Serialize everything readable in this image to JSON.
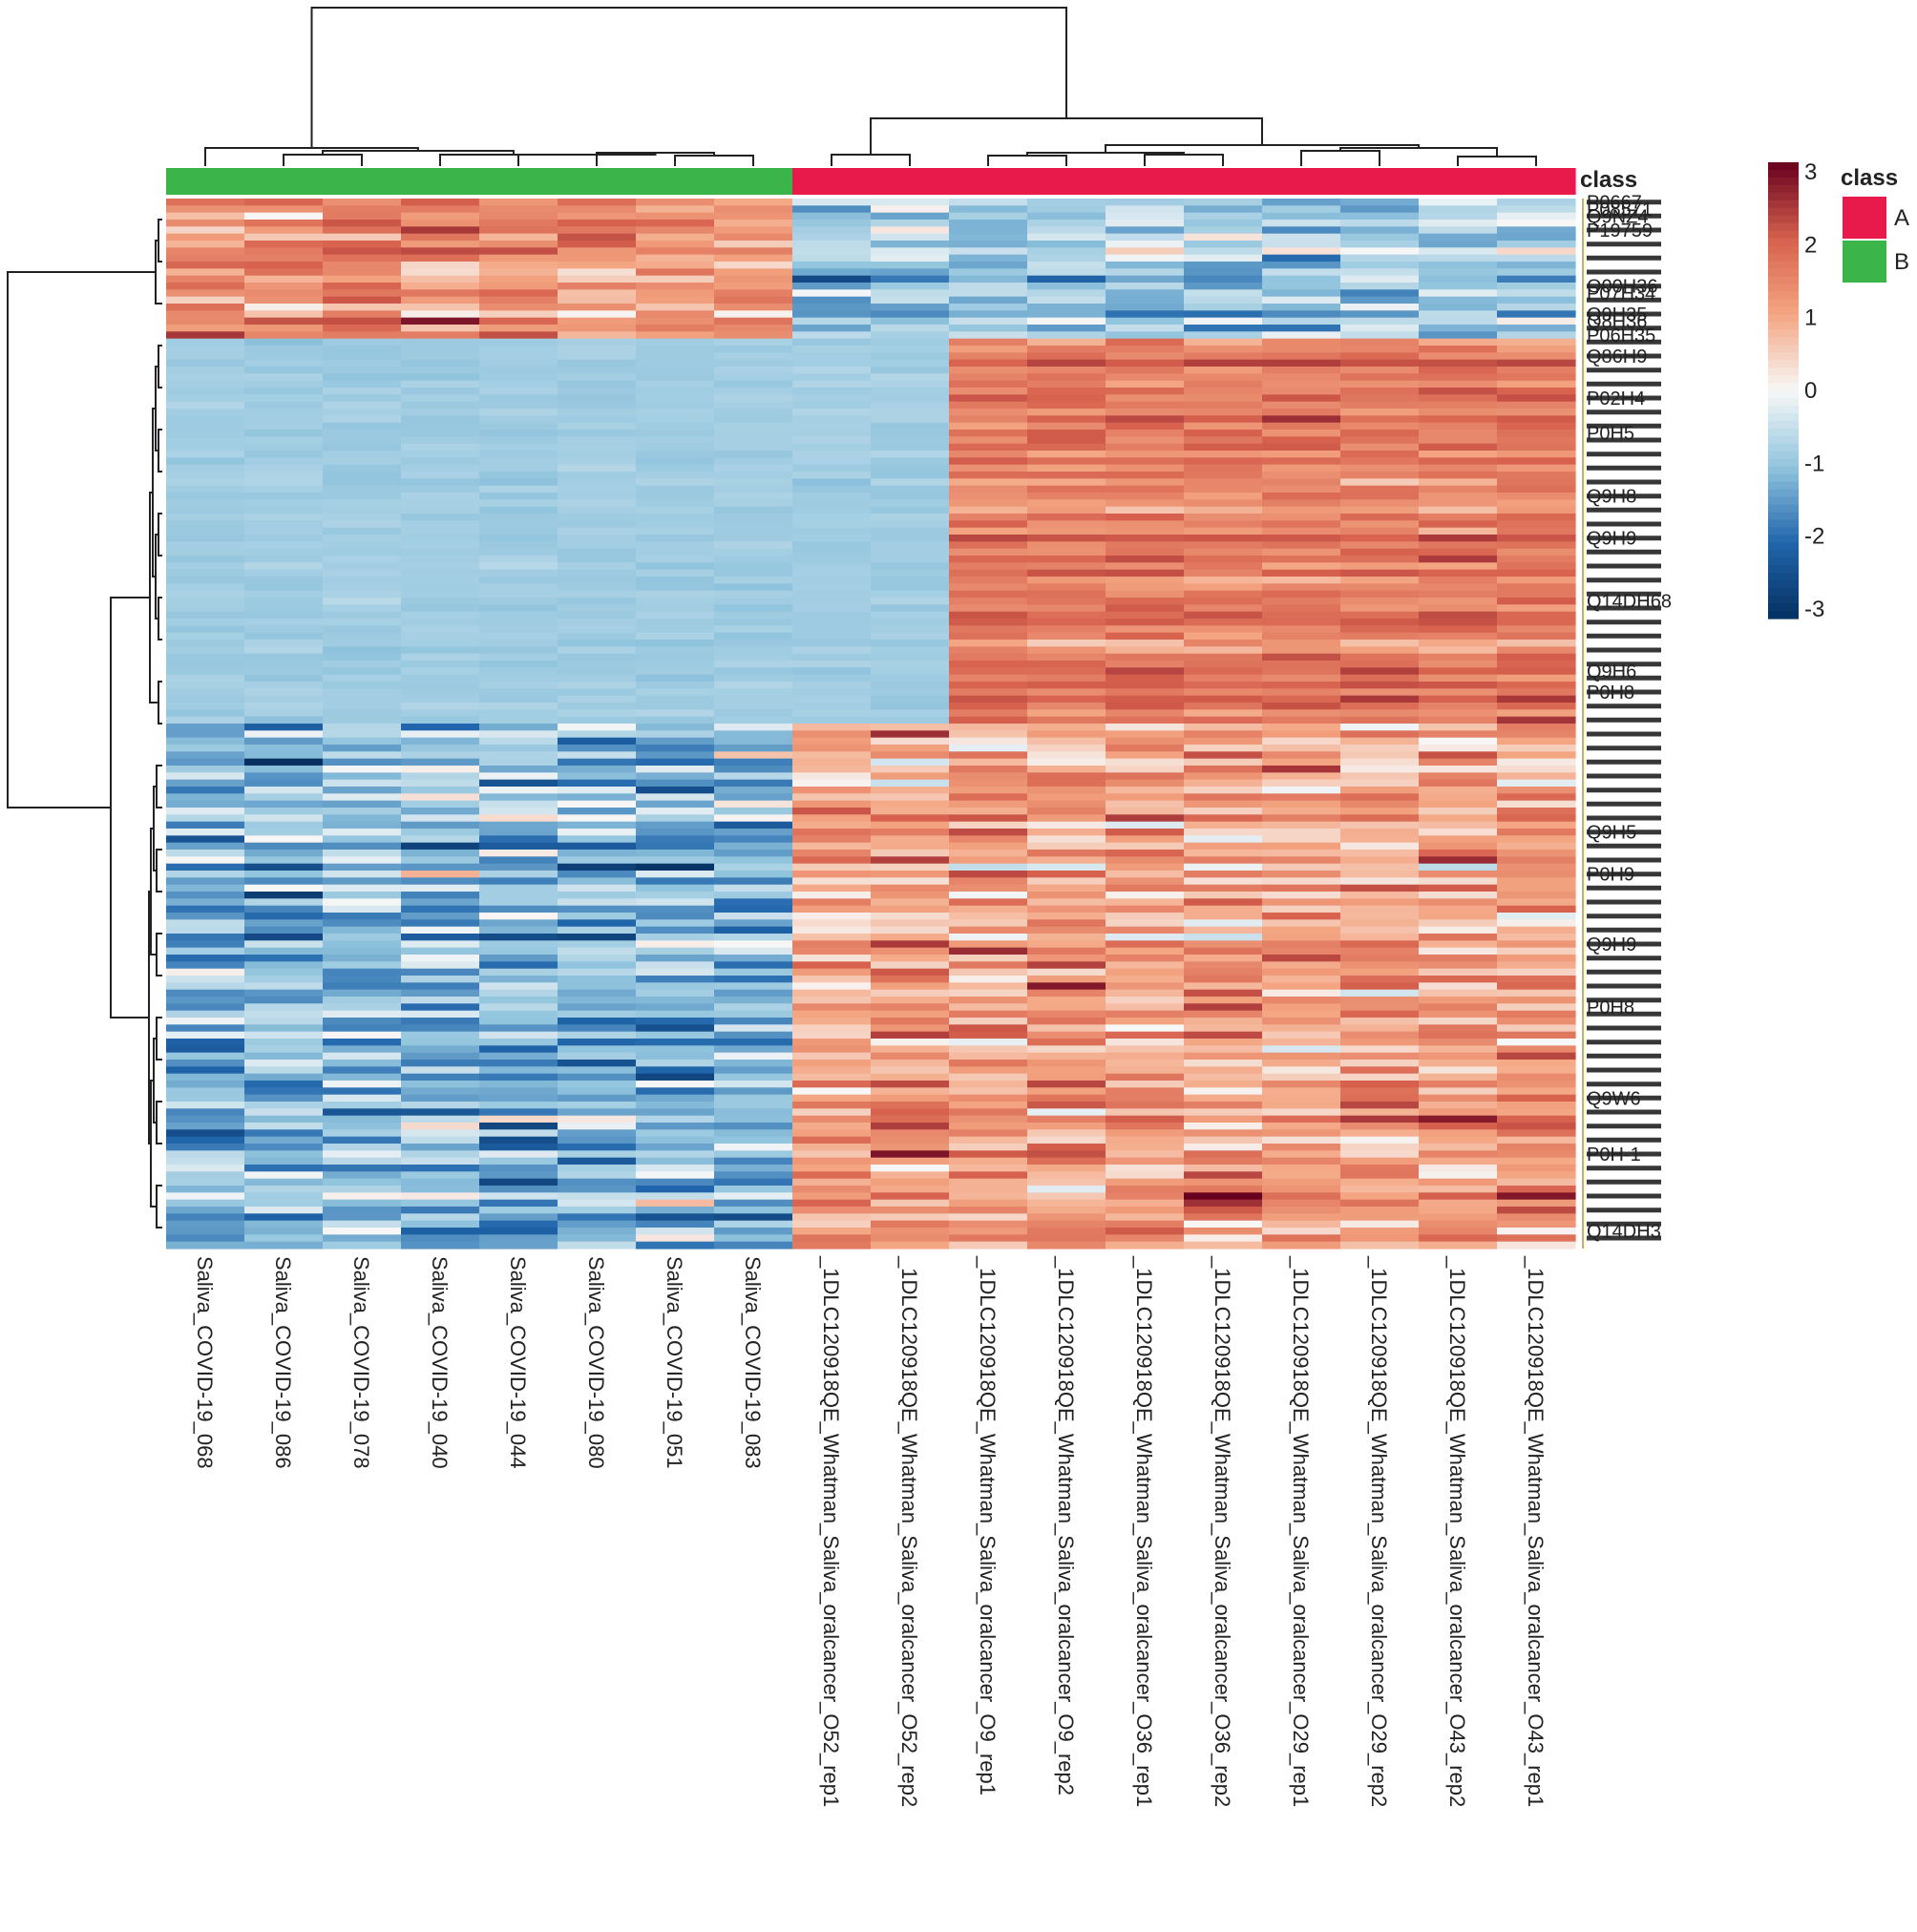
{
  "chart_data": {
    "type": "heatmap",
    "title": "",
    "columns": [
      {
        "label": "Saliva_COVID-19_068",
        "class": "B"
      },
      {
        "label": "Saliva_COVID-19_086",
        "class": "B"
      },
      {
        "label": "Saliva_COVID-19_078",
        "class": "B"
      },
      {
        "label": "Saliva_COVID-19_040",
        "class": "B"
      },
      {
        "label": "Saliva_COVID-19_044",
        "class": "B"
      },
      {
        "label": "Saliva_COVID-19_080",
        "class": "B"
      },
      {
        "label": "Saliva_COVID-19_051",
        "class": "B"
      },
      {
        "label": "Saliva_COVID-19_083",
        "class": "B"
      },
      {
        "label": "_1DLC120918QE_Whatman_Saliva_oralcancer_O52_rep1",
        "class": "A"
      },
      {
        "label": "_1DLC120918QE_Whatman_Saliva_oralcancer_O52_rep2",
        "class": "A"
      },
      {
        "label": "_1DLC120918QE_Whatman_Saliva_oralcancer_O9_rep1",
        "class": "A"
      },
      {
        "label": "_1DLC120918QE_Whatman_Saliva_oralcancer_O9_rep2",
        "class": "A"
      },
      {
        "label": "_1DLC120918QE_Whatman_Saliva_oralcancer_O36_rep1",
        "class": "A"
      },
      {
        "label": "_1DLC120918QE_Whatman_Saliva_oralcancer_O36_rep2",
        "class": "A"
      },
      {
        "label": "_1DLC120918QE_Whatman_Saliva_oralcancer_O29_rep1",
        "class": "A"
      },
      {
        "label": "_1DLC120918QE_Whatman_Saliva_oralcancer_O29_rep2",
        "class": "A"
      },
      {
        "label": "_1DLC120918QE_Whatman_Saliva_oralcancer_O43_rep2",
        "class": "A"
      },
      {
        "label": "_1DLC120918QE_Whatman_Saliva_oralcancer_O43_rep1",
        "class": "A"
      }
    ],
    "row_blocks": [
      {
        "name": "block1",
        "rows": 20,
        "group_mean": {
          "B": 1.2,
          "A": -0.9
        },
        "spread": 0.45
      },
      {
        "name": "block2",
        "rows": 55,
        "group_mean": {
          "B": -0.8,
          "A52": -0.8,
          "A": 1.5
        },
        "spread": 0.25
      },
      {
        "name": "block3",
        "rows": 40,
        "group_mean": {
          "B": -1.1,
          "A": 1.0
        },
        "spread": 0.6
      },
      {
        "name": "block4",
        "rows": 35,
        "group_mean": {
          "B": -1.1,
          "A": 1.1
        },
        "spread": 0.55
      }
    ],
    "row_labels": [
      {
        "text": "P0667",
        "row": 0
      },
      {
        "text": "P08571",
        "row": 1
      },
      {
        "text": "Q9NZ4",
        "row": 2
      },
      {
        "text": "P19759",
        "row": 4
      },
      {
        "text": "O00H36",
        "row": 12
      },
      {
        "text": "P07H34",
        "row": 13
      },
      {
        "text": "Q9H35",
        "row": 16
      },
      {
        "text": "Q8H36",
        "row": 17
      },
      {
        "text": "P06H35",
        "row": 19
      },
      {
        "text": "Q86H9",
        "row": 22
      },
      {
        "text": "P02H4",
        "row": 28
      },
      {
        "text": "P0H5",
        "row": 33
      },
      {
        "text": "Q9H8",
        "row": 42
      },
      {
        "text": "Q9H9",
        "row": 48
      },
      {
        "text": "Q14DH68",
        "row": 57
      },
      {
        "text": "Q9H6",
        "row": 67
      },
      {
        "text": "P0H8",
        "row": 70
      },
      {
        "text": "Q9H5",
        "row": 90
      },
      {
        "text": "P0H9",
        "row": 96
      },
      {
        "text": "Q9H9",
        "row": 106
      },
      {
        "text": "P0H8",
        "row": 115
      },
      {
        "text": "Q9W6",
        "row": 128
      },
      {
        "text": "P0H-1",
        "row": 136
      },
      {
        "text": "Q14DH3",
        "row": 147
      }
    ],
    "colorscale": {
      "min": -3,
      "max": 3,
      "ticks": [
        "3",
        "2",
        "1",
        "0",
        "-1",
        "-2",
        "-3"
      ]
    },
    "annotation": {
      "title": "class",
      "track_label": "class",
      "levels": [
        {
          "name": "A",
          "color": "#e8194b"
        },
        {
          "name": "B",
          "color": "#3bb54a"
        }
      ]
    },
    "colors": {
      "low": "#0a3a6c",
      "mid_low": "#a9cfe5",
      "mid": "#f4f0ef",
      "mid_high": "#f4a582",
      "high": "#6a0018"
    }
  }
}
